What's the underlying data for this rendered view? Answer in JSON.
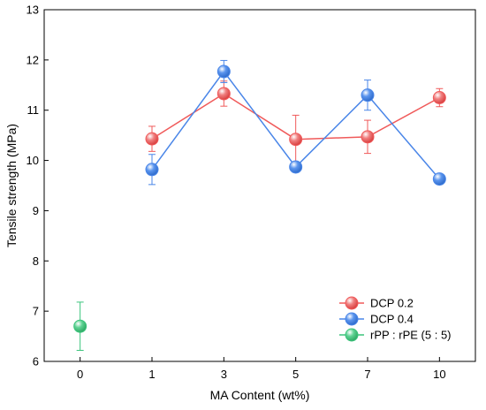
{
  "chart_data": {
    "type": "line",
    "xlabel": "MA Content (wt%)",
    "ylabel": "Tensile strength (MPa)",
    "categories": [
      "0",
      "1",
      "3",
      "5",
      "7",
      "10"
    ],
    "ylim": [
      6,
      13
    ],
    "yticks": [
      6,
      7,
      8,
      9,
      10,
      11,
      12,
      13
    ],
    "legend_position": "bottom-right",
    "series": [
      {
        "name": "DCP 0.2",
        "color": "#f05a5a",
        "fill": "#f08080",
        "connect": true,
        "points": [
          {
            "x": "1",
            "y": 10.43,
            "err": 0.25
          },
          {
            "x": "3",
            "y": 11.33,
            "err": 0.25
          },
          {
            "x": "5",
            "y": 10.42,
            "err": 0.48
          },
          {
            "x": "7",
            "y": 10.47,
            "err": 0.33
          },
          {
            "x": "10",
            "y": 11.25,
            "err": 0.18
          }
        ]
      },
      {
        "name": "DCP 0.4",
        "color": "#4a86e8",
        "fill": "#5b95ee",
        "connect": true,
        "points": [
          {
            "x": "1",
            "y": 9.82,
            "err": 0.3
          },
          {
            "x": "3",
            "y": 11.77,
            "err": 0.22
          },
          {
            "x": "5",
            "y": 9.87,
            "err": 0.1
          },
          {
            "x": "7",
            "y": 11.3,
            "err": 0.3
          },
          {
            "x": "10",
            "y": 9.63,
            "err": 0.1
          }
        ]
      },
      {
        "name": "rPP : rPE (5 : 5)",
        "color": "#3cc47c",
        "fill": "#5fd394",
        "connect": false,
        "points": [
          {
            "x": "0",
            "y": 6.7,
            "err": 0.48
          }
        ]
      }
    ]
  }
}
